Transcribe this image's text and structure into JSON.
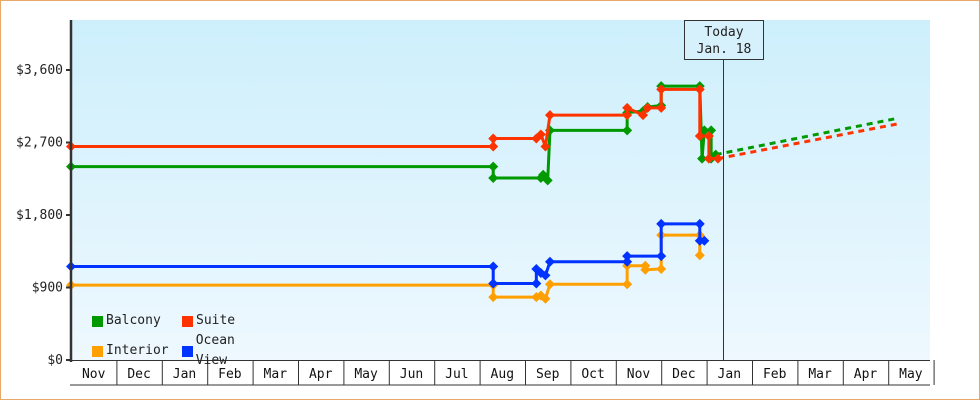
{
  "chart_data": {
    "type": "line",
    "title": "",
    "xlabel": "",
    "ylabel": "",
    "ylim": [
      0,
      4200
    ],
    "y_ticks": [
      {
        "value": 0,
        "label": "$0"
      },
      {
        "value": 900,
        "label": "$900"
      },
      {
        "value": 1800,
        "label": "$1,800"
      },
      {
        "value": 2700,
        "label": "$2,700"
      },
      {
        "value": 3600,
        "label": "$3,600"
      }
    ],
    "x_months": [
      "Nov",
      "Dec",
      "Jan",
      "Feb",
      "Mar",
      "Apr",
      "May",
      "Jun",
      "Jul",
      "Aug",
      "Sep",
      "Oct",
      "Nov",
      "Dec",
      "Jan",
      "Feb",
      "Mar",
      "Apr",
      "May"
    ],
    "grid": false,
    "legend_position": "bottom-left inside",
    "annotation": {
      "line1": "Today",
      "line2": "Jan. 18",
      "x_month_index": 14.4
    },
    "series": [
      {
        "name": "Balcony",
        "color": "#009900",
        "points": [
          [
            0.0,
            2400
          ],
          [
            9.3,
            2400
          ],
          [
            9.3,
            2260
          ],
          [
            10.35,
            2260
          ],
          [
            10.4,
            2300
          ],
          [
            10.5,
            2230
          ],
          [
            10.55,
            2850
          ],
          [
            12.25,
            2850
          ],
          [
            12.25,
            3070
          ],
          [
            12.6,
            3090
          ],
          [
            12.7,
            3140
          ],
          [
            13.0,
            3160
          ],
          [
            13.0,
            3400
          ],
          [
            13.85,
            3400
          ],
          [
            13.9,
            2500
          ],
          [
            13.95,
            2850
          ],
          [
            14.1,
            2850
          ],
          [
            14.1,
            2500
          ],
          [
            14.2,
            2550
          ]
        ],
        "forecast": [
          [
            14.2,
            2550
          ],
          [
            18.2,
            3000
          ]
        ]
      },
      {
        "name": "Suite",
        "color": "#ff3300",
        "points": [
          [
            0.0,
            2650
          ],
          [
            9.3,
            2650
          ],
          [
            9.3,
            2750
          ],
          [
            10.25,
            2750
          ],
          [
            10.35,
            2800
          ],
          [
            10.45,
            2650
          ],
          [
            10.55,
            3040
          ],
          [
            12.25,
            3040
          ],
          [
            12.25,
            3130
          ],
          [
            12.6,
            3040
          ],
          [
            12.7,
            3130
          ],
          [
            13.0,
            3130
          ],
          [
            13.0,
            3360
          ],
          [
            13.85,
            3360
          ],
          [
            13.85,
            2780
          ],
          [
            14.05,
            2780
          ],
          [
            14.05,
            2500
          ],
          [
            14.25,
            2500
          ]
        ],
        "forecast": [
          [
            14.25,
            2500
          ],
          [
            18.2,
            2930
          ]
        ]
      },
      {
        "name": "Interior",
        "color": "#ff9f00",
        "points": [
          [
            0.0,
            930
          ],
          [
            9.3,
            930
          ],
          [
            9.3,
            780
          ],
          [
            10.25,
            780
          ],
          [
            10.35,
            800
          ],
          [
            10.45,
            760
          ],
          [
            10.55,
            940
          ],
          [
            12.25,
            940
          ],
          [
            12.25,
            1170
          ],
          [
            12.65,
            1170
          ],
          [
            12.65,
            1120
          ],
          [
            13.0,
            1130
          ],
          [
            13.0,
            1550
          ],
          [
            13.85,
            1550
          ],
          [
            13.85,
            1300
          ]
        ],
        "forecast": []
      },
      {
        "name": "Ocean View",
        "color": "#0033ff",
        "points": [
          [
            0.0,
            1160
          ],
          [
            9.3,
            1160
          ],
          [
            9.3,
            950
          ],
          [
            10.25,
            950
          ],
          [
            10.25,
            1130
          ],
          [
            10.35,
            1080
          ],
          [
            10.45,
            1050
          ],
          [
            10.55,
            1220
          ],
          [
            12.25,
            1220
          ],
          [
            12.25,
            1290
          ],
          [
            12.6,
            1290
          ],
          [
            13.0,
            1290
          ],
          [
            13.0,
            1690
          ],
          [
            13.85,
            1690
          ],
          [
            13.85,
            1480
          ],
          [
            13.95,
            1480
          ]
        ],
        "forecast": []
      }
    ]
  },
  "legend": {
    "items": [
      {
        "label": "Balcony",
        "color": "#009900"
      },
      {
        "label": "Suite",
        "color": "#ff3300"
      },
      {
        "label": "Interior",
        "color": "#ff9f00"
      },
      {
        "label": "Ocean View",
        "color": "#0033ff"
      }
    ]
  },
  "today": {
    "line1": "Today",
    "line2": "Jan. 18"
  }
}
